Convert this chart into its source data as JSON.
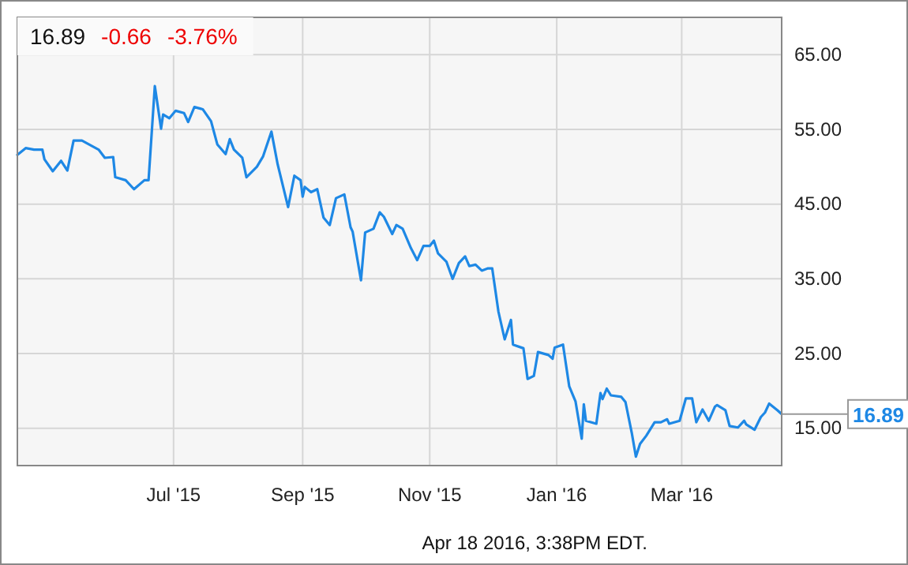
{
  "chart_data": {
    "type": "line",
    "x": [
      "2015-04-17",
      "2015-04-21",
      "2015-04-25",
      "2015-04-29",
      "2015-04-30",
      "2015-05-04",
      "2015-05-08",
      "2015-05-11",
      "2015-05-14",
      "2015-05-18",
      "2015-05-26",
      "2015-05-29",
      "2015-06-02",
      "2015-06-03",
      "2015-06-08",
      "2015-06-12",
      "2015-06-17",
      "2015-06-19",
      "2015-06-22",
      "2015-06-25",
      "2015-06-26",
      "2015-06-29",
      "2015-07-02",
      "2015-07-06",
      "2015-07-08",
      "2015-07-11",
      "2015-07-15",
      "2015-07-19",
      "2015-07-22",
      "2015-07-26",
      "2015-07-28",
      "2015-07-30",
      "2015-08-03",
      "2015-08-05",
      "2015-08-10",
      "2015-08-13",
      "2015-08-17",
      "2015-08-20",
      "2015-08-25",
      "2015-08-28",
      "2015-08-31",
      "2015-09-01",
      "2015-09-02",
      "2015-09-05",
      "2015-09-08",
      "2015-09-11",
      "2015-09-14",
      "2015-09-17",
      "2015-09-21",
      "2015-09-24",
      "2015-09-25",
      "2015-09-29",
      "2015-10-01",
      "2015-10-05",
      "2015-10-08",
      "2015-10-10",
      "2015-10-14",
      "2015-10-16",
      "2015-10-19",
      "2015-10-23",
      "2015-10-26",
      "2015-10-29",
      "2015-11-01",
      "2015-11-03",
      "2015-11-05",
      "2015-11-09",
      "2015-11-12",
      "2015-11-15",
      "2015-11-18",
      "2015-11-20",
      "2015-11-23",
      "2015-11-26",
      "2015-11-29",
      "2015-12-01",
      "2015-12-04",
      "2015-12-07",
      "2015-12-10",
      "2015-12-11",
      "2015-12-16",
      "2015-12-18",
      "2015-12-21",
      "2015-12-23",
      "2015-12-28",
      "2015-12-30",
      "2015-12-31",
      "2016-01-04",
      "2016-01-07",
      "2016-01-10",
      "2016-01-13",
      "2016-01-14",
      "2016-01-15",
      "2016-01-20",
      "2016-01-22",
      "2016-01-23",
      "2016-01-25",
      "2016-01-27",
      "2016-02-01",
      "2016-02-03",
      "2016-02-06",
      "2016-02-08",
      "2016-02-10",
      "2016-02-13",
      "2016-02-17",
      "2016-02-20",
      "2016-02-23",
      "2016-02-24",
      "2016-02-29",
      "2016-03-03",
      "2016-03-06",
      "2016-03-08",
      "2016-03-11",
      "2016-03-14",
      "2016-03-17",
      "2016-03-18",
      "2016-03-22",
      "2016-03-24",
      "2016-03-28",
      "2016-03-31",
      "2016-04-01",
      "2016-04-05",
      "2016-04-08",
      "2016-04-10",
      "2016-04-12",
      "2016-04-16",
      "2016-04-18"
    ],
    "series": [
      {
        "color": "#1e88e5",
        "values": [
          51.6,
          52.5,
          52.3,
          52.3,
          51.0,
          49.4,
          50.8,
          49.5,
          53.5,
          53.5,
          52.3,
          51.2,
          51.3,
          48.6,
          48.2,
          47.0,
          48.2,
          48.2,
          60.8,
          55.1,
          57.0,
          56.5,
          57.5,
          57.2,
          56.0,
          58.0,
          57.7,
          56.1,
          53.0,
          51.7,
          53.7,
          52.3,
          51.2,
          48.6,
          50.0,
          51.4,
          54.7,
          50.3,
          44.6,
          48.8,
          48.2,
          46.0,
          47.3,
          46.6,
          47.0,
          43.2,
          42.2,
          45.8,
          46.3,
          41.9,
          41.3,
          34.8,
          41.2,
          41.7,
          43.9,
          43.3,
          41.0,
          42.2,
          41.7,
          39.1,
          37.5,
          39.4,
          39.4,
          40.1,
          38.4,
          37.3,
          35.0,
          37.1,
          38.0,
          36.7,
          36.9,
          36.1,
          36.4,
          36.4,
          30.6,
          26.9,
          29.5,
          26.2,
          25.7,
          21.6,
          22.0,
          25.2,
          24.8,
          24.3,
          25.8,
          26.2,
          20.6,
          18.6,
          13.6,
          18.2,
          16.0,
          15.6,
          19.7,
          18.9,
          20.3,
          19.4,
          19.2,
          18.5,
          14.4,
          11.2,
          12.9,
          14.0,
          15.8,
          15.8,
          16.2,
          15.6,
          16.0,
          19.0,
          19.0,
          15.8,
          17.5,
          16.0,
          17.9,
          18.1,
          17.4,
          15.3,
          15.1,
          16.0,
          15.5,
          14.8,
          16.5,
          17.1,
          18.3,
          17.4,
          16.89
        ]
      }
    ],
    "xlim": [
      "2015-04-17",
      "2016-04-18"
    ],
    "xticks": [
      {
        "value": "2015-07-01",
        "label": "Jul '15"
      },
      {
        "value": "2015-09-01",
        "label": "Sep '15"
      },
      {
        "value": "2015-11-01",
        "label": "Nov '15"
      },
      {
        "value": "2016-01-01",
        "label": "Jan '16"
      },
      {
        "value": "2016-03-01",
        "label": "Mar '16"
      }
    ],
    "ylim": [
      10,
      70
    ],
    "yticks": [
      {
        "value": 15,
        "label": "15.00"
      },
      {
        "value": 25,
        "label": "25.00"
      },
      {
        "value": 35,
        "label": "35.00"
      },
      {
        "value": 45,
        "label": "45.00"
      },
      {
        "value": 55,
        "label": "55.00"
      },
      {
        "value": 65,
        "label": "65.00"
      }
    ],
    "grid": true,
    "annotations": [
      "16.89",
      "-0.66",
      "-3.76%",
      {
        "text": "16.89",
        "x": "2016-04-18",
        "y": 16.89
      },
      "Apr 18 2016, 3:38PM EDT."
    ]
  }
}
